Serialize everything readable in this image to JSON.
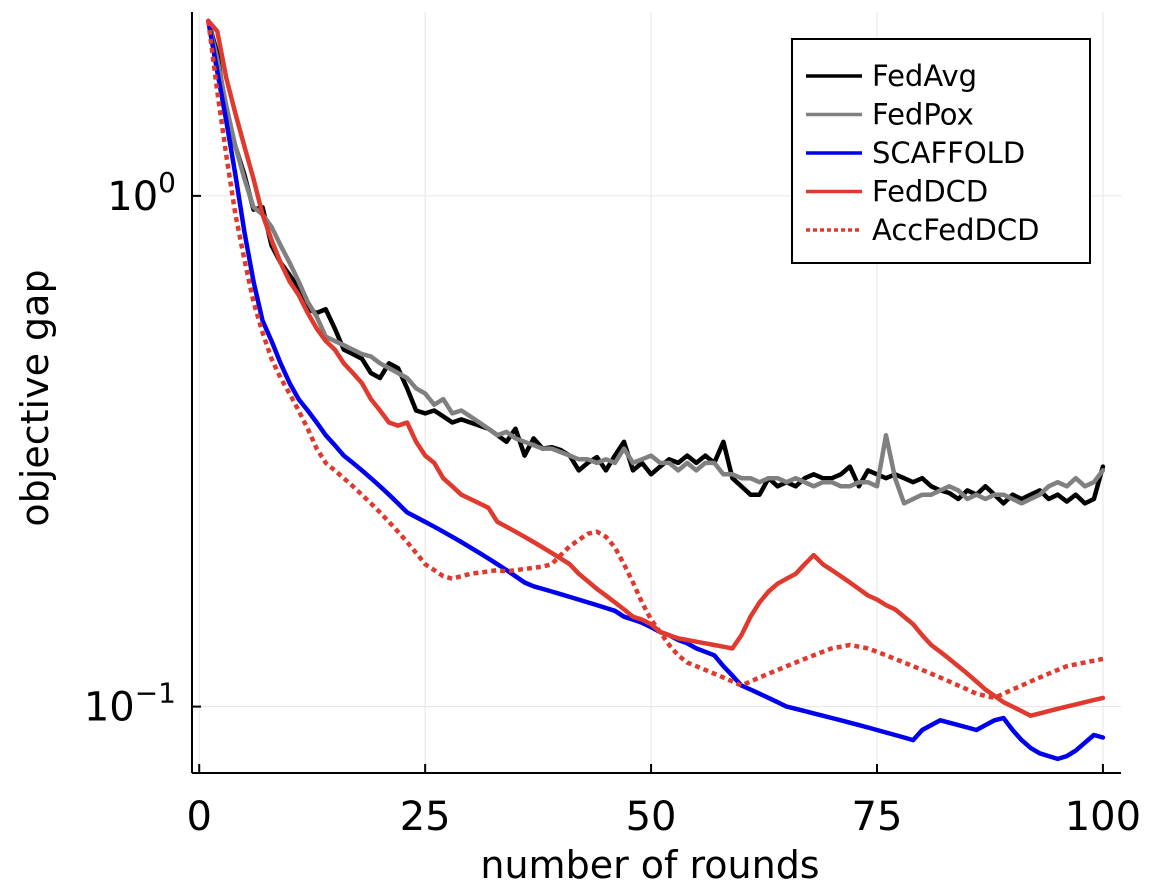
{
  "chart_data": {
    "type": "line",
    "title": "",
    "xlabel": "number of rounds",
    "ylabel": "objective gap",
    "xlim": [
      -0.8,
      102
    ],
    "ylim_log10": [
      -1.13,
      0.36
    ],
    "yscale": "log",
    "grid": true,
    "legend_position": "top-right",
    "x_ticks": [
      0,
      25,
      50,
      75,
      100
    ],
    "x_tick_labels": [
      "0",
      "25",
      "50",
      "75",
      "100"
    ],
    "y_ticks": [
      1,
      0.1
    ],
    "y_tick_labels": [
      {
        "base": "10",
        "exp": "0"
      },
      {
        "base": "10",
        "exp": "−1"
      }
    ],
    "series": [
      {
        "name": "FedAvg",
        "color": "#000000",
        "dash": "solid",
        "x": [
          1,
          2,
          3,
          4,
          5,
          6,
          7,
          8,
          9,
          10,
          11,
          12,
          13,
          14,
          15,
          16,
          17,
          18,
          19,
          20,
          21,
          22,
          23,
          24,
          25,
          26,
          27,
          28,
          29,
          30,
          31,
          32,
          33,
          34,
          35,
          36,
          37,
          38,
          39,
          40,
          41,
          42,
          43,
          44,
          45,
          46,
          47,
          48,
          49,
          50,
          51,
          52,
          53,
          54,
          55,
          56,
          57,
          58,
          59,
          60,
          61,
          62,
          63,
          64,
          65,
          66,
          67,
          68,
          69,
          70,
          71,
          72,
          73,
          74,
          75,
          76,
          77,
          78,
          79,
          80,
          81,
          82,
          83,
          84,
          85,
          86,
          87,
          88,
          89,
          90,
          91,
          92,
          93,
          94,
          95,
          96,
          97,
          98,
          99,
          100
        ],
        "y": [
          2.2,
          1.9,
          1.45,
          1.25,
          1.1,
          0.94,
          0.95,
          0.8,
          0.74,
          0.7,
          0.66,
          0.6,
          0.59,
          0.6,
          0.55,
          0.5,
          0.49,
          0.48,
          0.45,
          0.44,
          0.47,
          0.46,
          0.42,
          0.38,
          0.375,
          0.38,
          0.37,
          0.36,
          0.365,
          0.36,
          0.355,
          0.35,
          0.34,
          0.33,
          0.35,
          0.31,
          0.335,
          0.32,
          0.322,
          0.318,
          0.31,
          0.29,
          0.3,
          0.308,
          0.29,
          0.31,
          0.33,
          0.29,
          0.3,
          0.285,
          0.295,
          0.305,
          0.3,
          0.31,
          0.3,
          0.31,
          0.3,
          0.33,
          0.28,
          0.27,
          0.26,
          0.26,
          0.28,
          0.27,
          0.275,
          0.27,
          0.28,
          0.285,
          0.28,
          0.28,
          0.285,
          0.295,
          0.27,
          0.29,
          0.285,
          0.28,
          0.285,
          0.28,
          0.275,
          0.28,
          0.27,
          0.265,
          0.262,
          0.255,
          0.265,
          0.26,
          0.27,
          0.26,
          0.25,
          0.26,
          0.255,
          0.26,
          0.265,
          0.255,
          0.26,
          0.252,
          0.26,
          0.25,
          0.255,
          0.295
        ]
      },
      {
        "name": "FedPox",
        "color": "#808080",
        "dash": "solid",
        "x": [
          1,
          2,
          3,
          4,
          5,
          6,
          7,
          8,
          9,
          10,
          11,
          12,
          13,
          14,
          15,
          16,
          17,
          18,
          19,
          20,
          21,
          22,
          23,
          24,
          25,
          26,
          27,
          28,
          29,
          30,
          31,
          32,
          33,
          34,
          35,
          36,
          37,
          38,
          39,
          40,
          41,
          42,
          43,
          44,
          45,
          46,
          47,
          48,
          49,
          50,
          51,
          52,
          53,
          54,
          55,
          56,
          57,
          58,
          59,
          60,
          61,
          62,
          63,
          64,
          65,
          66,
          67,
          68,
          69,
          70,
          71,
          72,
          73,
          74,
          75,
          76,
          77,
          78,
          79,
          80,
          81,
          82,
          83,
          84,
          85,
          86,
          87,
          88,
          89,
          90,
          91,
          92,
          93,
          94,
          95,
          96,
          97,
          98,
          99,
          100
        ],
        "y": [
          2.2,
          1.85,
          1.5,
          1.25,
          1.08,
          0.95,
          0.92,
          0.87,
          0.8,
          0.74,
          0.68,
          0.62,
          0.58,
          0.53,
          0.52,
          0.51,
          0.5,
          0.49,
          0.485,
          0.47,
          0.46,
          0.45,
          0.44,
          0.42,
          0.41,
          0.39,
          0.4,
          0.375,
          0.38,
          0.37,
          0.36,
          0.35,
          0.34,
          0.345,
          0.335,
          0.33,
          0.325,
          0.32,
          0.32,
          0.315,
          0.31,
          0.305,
          0.305,
          0.3,
          0.305,
          0.3,
          0.32,
          0.3,
          0.305,
          0.31,
          0.3,
          0.3,
          0.29,
          0.3,
          0.29,
          0.3,
          0.3,
          0.285,
          0.285,
          0.28,
          0.28,
          0.275,
          0.28,
          0.28,
          0.275,
          0.28,
          0.275,
          0.27,
          0.275,
          0.275,
          0.27,
          0.27,
          0.275,
          0.275,
          0.27,
          0.34,
          0.28,
          0.25,
          0.255,
          0.26,
          0.26,
          0.265,
          0.27,
          0.265,
          0.255,
          0.26,
          0.255,
          0.26,
          0.26,
          0.255,
          0.25,
          0.255,
          0.26,
          0.27,
          0.275,
          0.27,
          0.28,
          0.27,
          0.275,
          0.29
        ]
      },
      {
        "name": "SCAFFOLD",
        "color": "#0000ee",
        "dash": "solid",
        "x": [
          1,
          2,
          3,
          4,
          5,
          6,
          7,
          8,
          9,
          10,
          11,
          12,
          13,
          14,
          15,
          16,
          17,
          18,
          19,
          20,
          21,
          22,
          23,
          24,
          25,
          26,
          27,
          28,
          29,
          30,
          31,
          32,
          33,
          34,
          35,
          36,
          37,
          38,
          39,
          40,
          41,
          42,
          43,
          44,
          45,
          46,
          47,
          48,
          49,
          50,
          51,
          52,
          53,
          54,
          55,
          56,
          57,
          58,
          59,
          60,
          61,
          62,
          63,
          64,
          65,
          66,
          67,
          68,
          69,
          70,
          71,
          72,
          73,
          74,
          75,
          76,
          77,
          78,
          79,
          80,
          81,
          82,
          83,
          84,
          85,
          86,
          87,
          88,
          89,
          90,
          91,
          92,
          93,
          94,
          95,
          96,
          97,
          98,
          99,
          100
        ],
        "y": [
          2.2,
          1.75,
          1.4,
          1.1,
          0.85,
          0.68,
          0.57,
          0.52,
          0.47,
          0.43,
          0.4,
          0.38,
          0.36,
          0.34,
          0.325,
          0.31,
          0.3,
          0.29,
          0.28,
          0.27,
          0.26,
          0.25,
          0.24,
          0.235,
          0.23,
          0.225,
          0.22,
          0.215,
          0.21,
          0.205,
          0.2,
          0.195,
          0.19,
          0.185,
          0.18,
          0.175,
          0.172,
          0.17,
          0.168,
          0.166,
          0.164,
          0.162,
          0.16,
          0.158,
          0.156,
          0.154,
          0.15,
          0.148,
          0.146,
          0.143,
          0.14,
          0.138,
          0.135,
          0.133,
          0.13,
          0.128,
          0.126,
          0.12,
          0.115,
          0.11,
          0.108,
          0.106,
          0.104,
          0.102,
          0.1,
          0.099,
          0.098,
          0.097,
          0.096,
          0.095,
          0.094,
          0.093,
          0.092,
          0.091,
          0.09,
          0.089,
          0.088,
          0.087,
          0.086,
          0.09,
          0.092,
          0.094,
          0.093,
          0.092,
          0.091,
          0.09,
          0.092,
          0.094,
          0.095,
          0.09,
          0.086,
          0.083,
          0.081,
          0.08,
          0.079,
          0.08,
          0.082,
          0.085,
          0.088,
          0.087
        ]
      },
      {
        "name": "FedDCD",
        "color": "#e03a2e",
        "dash": "solid",
        "x": [
          1,
          2,
          3,
          4,
          5,
          6,
          7,
          8,
          9,
          10,
          11,
          12,
          13,
          14,
          15,
          16,
          17,
          18,
          19,
          20,
          21,
          22,
          23,
          24,
          25,
          26,
          27,
          28,
          29,
          30,
          31,
          32,
          33,
          34,
          35,
          36,
          37,
          38,
          39,
          40,
          41,
          42,
          43,
          44,
          45,
          46,
          47,
          48,
          49,
          50,
          51,
          52,
          53,
          54,
          55,
          56,
          57,
          58,
          59,
          60,
          61,
          62,
          63,
          64,
          65,
          66,
          67,
          68,
          69,
          70,
          71,
          72,
          73,
          74,
          75,
          76,
          77,
          78,
          79,
          80,
          81,
          82,
          83,
          84,
          85,
          86,
          87,
          88,
          89,
          90,
          91,
          92,
          93,
          94,
          95,
          96,
          97,
          98,
          99,
          100
        ],
        "y": [
          2.2,
          2.1,
          1.7,
          1.45,
          1.25,
          1.08,
          0.92,
          0.82,
          0.74,
          0.68,
          0.64,
          0.59,
          0.55,
          0.52,
          0.5,
          0.47,
          0.45,
          0.43,
          0.4,
          0.38,
          0.36,
          0.355,
          0.36,
          0.33,
          0.31,
          0.3,
          0.28,
          0.27,
          0.26,
          0.255,
          0.25,
          0.245,
          0.23,
          0.225,
          0.22,
          0.215,
          0.21,
          0.205,
          0.2,
          0.195,
          0.19,
          0.182,
          0.176,
          0.17,
          0.165,
          0.16,
          0.155,
          0.15,
          0.148,
          0.145,
          0.14,
          0.138,
          0.136,
          0.135,
          0.134,
          0.133,
          0.132,
          0.131,
          0.13,
          0.138,
          0.15,
          0.16,
          0.168,
          0.174,
          0.178,
          0.182,
          0.19,
          0.198,
          0.19,
          0.185,
          0.18,
          0.175,
          0.17,
          0.165,
          0.162,
          0.158,
          0.155,
          0.15,
          0.145,
          0.138,
          0.132,
          0.128,
          0.124,
          0.12,
          0.116,
          0.112,
          0.108,
          0.105,
          0.102,
          0.1,
          0.098,
          0.096,
          0.097,
          0.098,
          0.099,
          0.1,
          0.101,
          0.102,
          0.103,
          0.104
        ]
      },
      {
        "name": "AccFedDCD",
        "color": "#e03a2e",
        "dash": "dotted",
        "x": [
          1,
          2,
          3,
          4,
          5,
          6,
          7,
          8,
          9,
          10,
          11,
          12,
          13,
          14,
          15,
          16,
          17,
          18,
          19,
          20,
          21,
          22,
          23,
          24,
          25,
          26,
          27,
          28,
          29,
          30,
          31,
          32,
          33,
          34,
          35,
          36,
          37,
          38,
          39,
          40,
          41,
          42,
          43,
          44,
          45,
          46,
          47,
          48,
          49,
          50,
          51,
          52,
          53,
          54,
          55,
          56,
          57,
          58,
          59,
          60,
          61,
          62,
          63,
          64,
          65,
          66,
          67,
          68,
          69,
          70,
          71,
          72,
          73,
          74,
          75,
          76,
          77,
          78,
          79,
          80,
          81,
          82,
          83,
          84,
          85,
          86,
          87,
          88,
          89,
          90,
          91,
          92,
          93,
          94,
          95,
          96,
          97,
          98,
          99,
          100
        ],
        "y": [
          2.2,
          1.6,
          1.2,
          0.92,
          0.75,
          0.62,
          0.54,
          0.48,
          0.44,
          0.41,
          0.38,
          0.35,
          0.32,
          0.3,
          0.29,
          0.28,
          0.27,
          0.26,
          0.25,
          0.24,
          0.23,
          0.22,
          0.21,
          0.2,
          0.19,
          0.185,
          0.18,
          0.178,
          0.18,
          0.182,
          0.183,
          0.184,
          0.185,
          0.184,
          0.185,
          0.186,
          0.187,
          0.188,
          0.19,
          0.198,
          0.206,
          0.212,
          0.218,
          0.22,
          0.215,
          0.205,
          0.19,
          0.175,
          0.16,
          0.148,
          0.14,
          0.132,
          0.126,
          0.122,
          0.12,
          0.118,
          0.116,
          0.114,
          0.112,
          0.11,
          0.112,
          0.114,
          0.116,
          0.118,
          0.12,
          0.122,
          0.124,
          0.126,
          0.128,
          0.13,
          0.131,
          0.132,
          0.131,
          0.13,
          0.128,
          0.126,
          0.124,
          0.122,
          0.12,
          0.118,
          0.116,
          0.114,
          0.112,
          0.11,
          0.108,
          0.106,
          0.105,
          0.104,
          0.106,
          0.108,
          0.11,
          0.112,
          0.114,
          0.116,
          0.118,
          0.12,
          0.121,
          0.122,
          0.123,
          0.124
        ]
      }
    ]
  }
}
